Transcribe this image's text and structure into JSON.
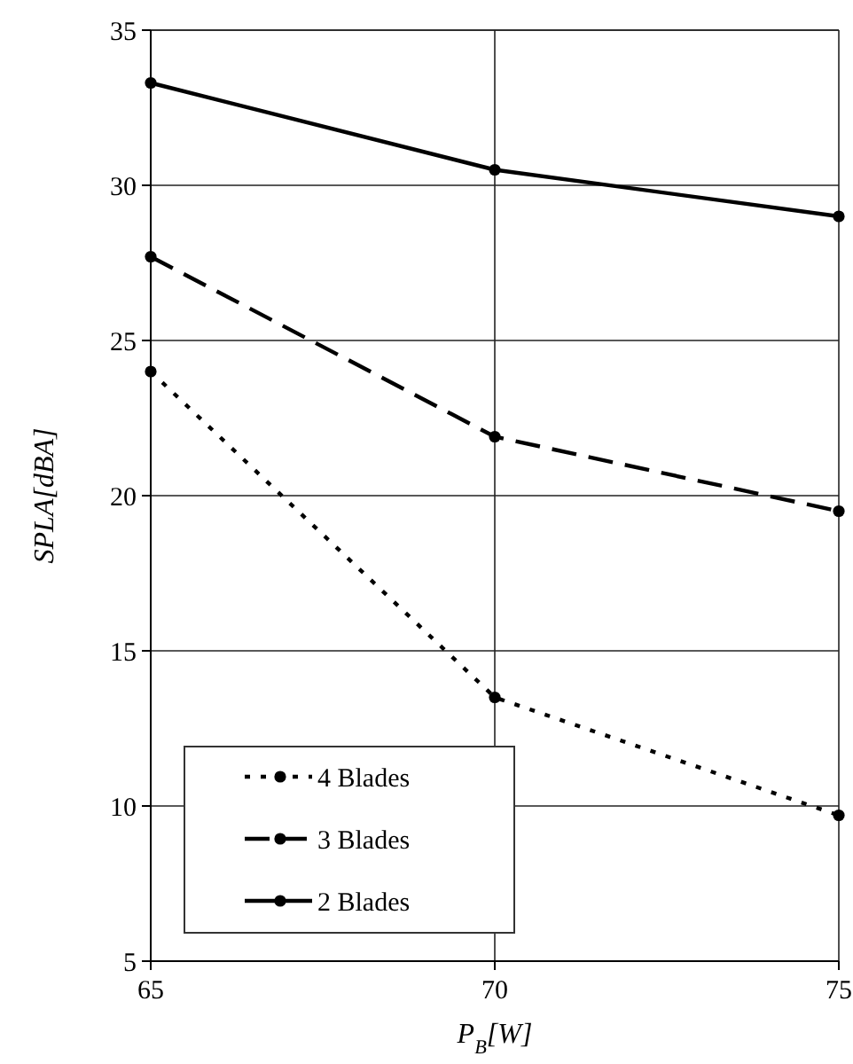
{
  "chart_data": {
    "type": "line",
    "xlabel": "P$_{B}$[W]",
    "ylabel": "SPLA[dBA]",
    "x": [
      65,
      70,
      75
    ],
    "xlim": [
      65,
      75
    ],
    "xticks": [
      65,
      70,
      75
    ],
    "ylim": [
      5,
      35
    ],
    "yticks": [
      5,
      10,
      15,
      20,
      25,
      30,
      35
    ],
    "grid": true,
    "legend": "bottom left",
    "marker": "circle",
    "series": [
      {
        "name": "4 Blades",
        "color": "#000000",
        "line_style": "dotted",
        "values": [
          24.0,
          13.5,
          9.7
        ]
      },
      {
        "name": "3 Blades",
        "color": "#000000",
        "line_style": "dashed",
        "values": [
          27.7,
          21.9,
          19.5
        ]
      },
      {
        "name": "2 Blades",
        "color": "#000000",
        "line_style": "solid",
        "values": [
          33.3,
          30.5,
          29.0
        ]
      }
    ]
  }
}
